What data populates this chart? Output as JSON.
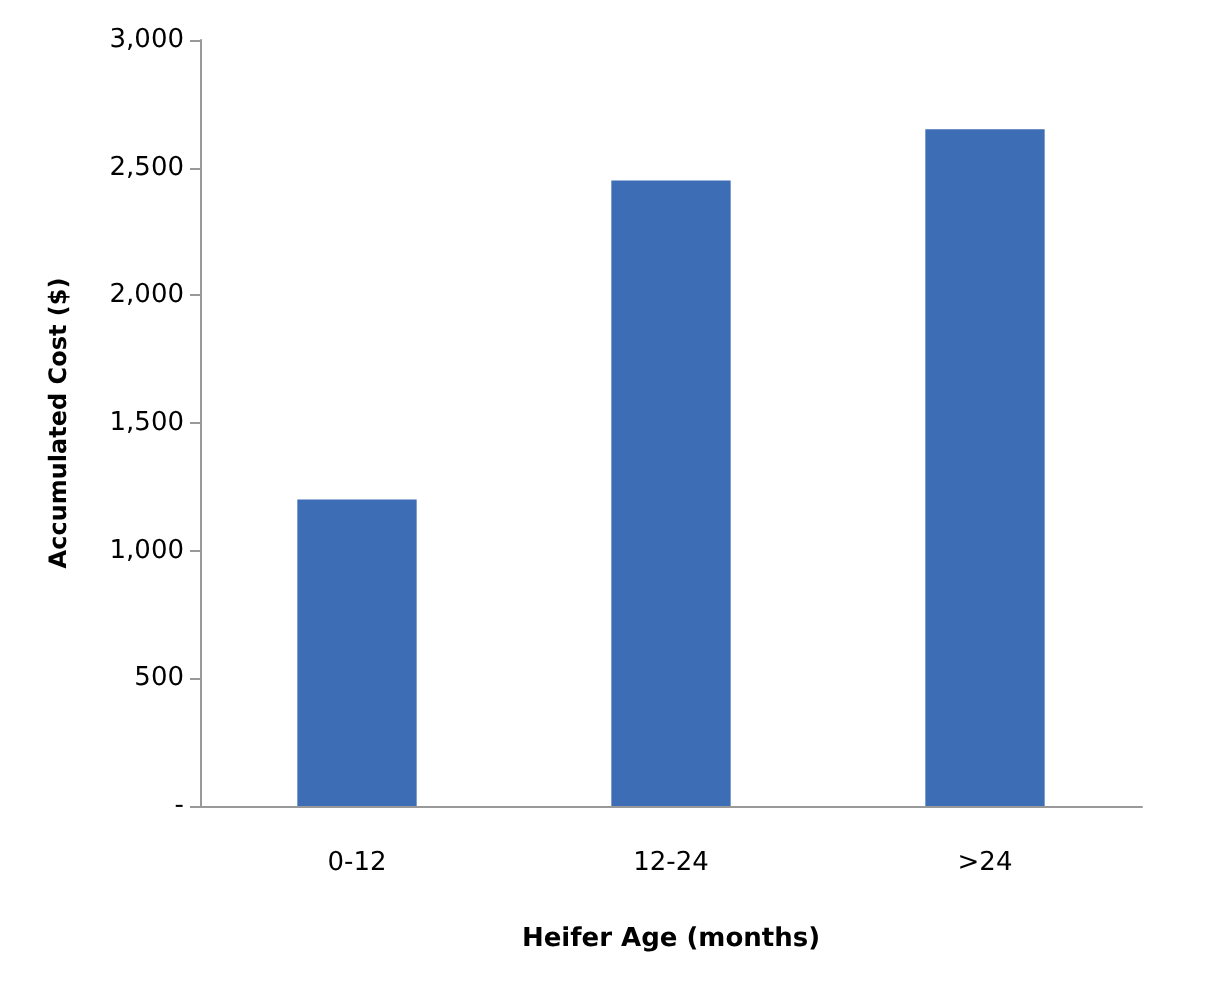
{
  "chart_data": {
    "type": "bar",
    "xlabel": "Heifer Age (months)",
    "ylabel": "Accumulated Cost ($)",
    "categories": [
      "0-12",
      "12-24",
      ">24"
    ],
    "values": [
      1200,
      2450,
      2650
    ],
    "color": "#3d6db5",
    "ylim": [
      0,
      3000
    ],
    "yticks": [
      {
        "value": 0,
        "label": "-"
      },
      {
        "value": 500,
        "label": "500"
      },
      {
        "value": 1000,
        "label": "1,000"
      },
      {
        "value": 1500,
        "label": "1,500"
      },
      {
        "value": 2000,
        "label": "2,000"
      },
      {
        "value": 2500,
        "label": "2,500"
      },
      {
        "value": 3000,
        "label": "3,000"
      }
    ],
    "grid": false
  }
}
